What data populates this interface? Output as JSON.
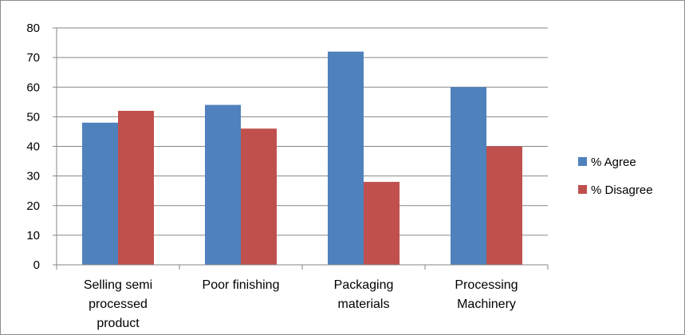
{
  "chart_data": {
    "type": "bar",
    "categories": [
      [
        "Selling semi",
        "processed",
        "product"
      ],
      [
        "Poor finishing"
      ],
      [
        "Packaging",
        "materials"
      ],
      [
        "Processing",
        "Machinery"
      ]
    ],
    "series": [
      {
        "name": "% Agree",
        "color": "#4f81bd",
        "values": [
          48,
          54,
          72,
          60
        ]
      },
      {
        "name": "% Disagree",
        "color": "#c0504d",
        "values": [
          52,
          46,
          28,
          40
        ]
      }
    ],
    "y_ticks": [
      0,
      10,
      20,
      30,
      40,
      50,
      60,
      70,
      80
    ],
    "ylim": [
      0,
      80
    ],
    "grid": true,
    "legend_position": "right"
  }
}
